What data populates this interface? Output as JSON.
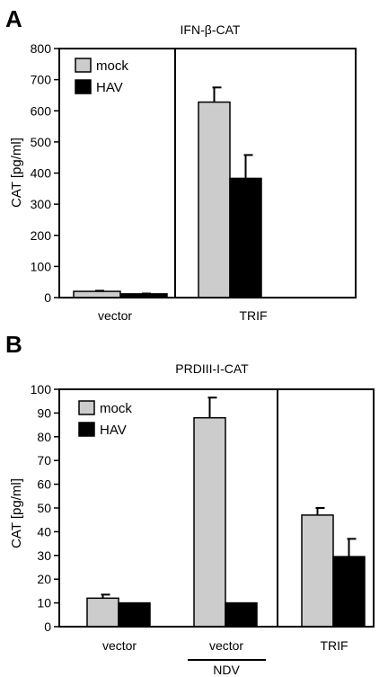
{
  "chart_data": [
    {
      "panel_label": "A",
      "type": "bar",
      "title": "IFN-β-CAT",
      "ylabel": "CAT [pg/ml]",
      "xlabel": "",
      "ylim": [
        0,
        800
      ],
      "yticks": [
        0,
        100,
        200,
        300,
        400,
        500,
        600,
        700,
        800
      ],
      "categories": [
        "vector",
        "TRIF"
      ],
      "group_note": "",
      "series": [
        {
          "name": "mock",
          "color": "#cccccc",
          "values": [
            20,
            628
          ],
          "errors": [
            2,
            47
          ]
        },
        {
          "name": "HAV",
          "color": "#000000",
          "values": [
            12,
            383
          ],
          "errors": [
            1,
            75
          ]
        }
      ],
      "legend": "top-left",
      "grid": false
    },
    {
      "panel_label": "B",
      "type": "bar",
      "title": "PRDIII-I-CAT",
      "ylabel": "CAT [pg/ml]",
      "xlabel": "",
      "ylim": [
        0,
        100
      ],
      "yticks": [
        0,
        10,
        20,
        30,
        40,
        50,
        60,
        70,
        80,
        90,
        100
      ],
      "categories": [
        "vector",
        "vector",
        "TRIF"
      ],
      "group_note": "NDV",
      "series": [
        {
          "name": "mock",
          "color": "#cccccc",
          "values": [
            12,
            88,
            47
          ],
          "errors": [
            1.5,
            8.5,
            3
          ]
        },
        {
          "name": "HAV",
          "color": "#000000",
          "values": [
            10,
            10,
            29.5
          ],
          "errors": [
            0,
            0,
            7.5
          ]
        }
      ],
      "legend": "top-left",
      "grid": false
    }
  ]
}
